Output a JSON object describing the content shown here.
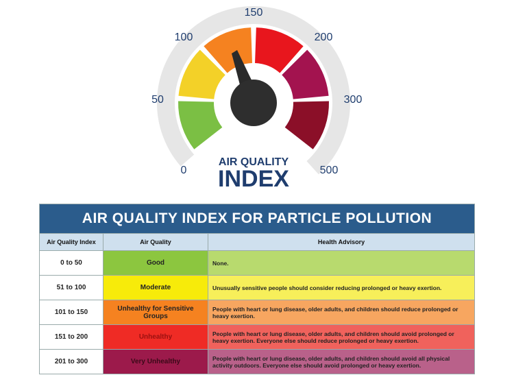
{
  "gauge": {
    "ticks": [
      "0",
      "50",
      "100",
      "150",
      "200",
      "300",
      "500"
    ],
    "caption_top": "AIR QUALITY",
    "caption_main": "INDEX"
  },
  "table": {
    "title": "AIR QUALITY INDEX FOR PARTICLE POLLUTION",
    "headers": [
      "Air Quality Index",
      "Air Quality",
      "Health Advisory"
    ],
    "rows": [
      [
        "0 to 50",
        "Good",
        "None."
      ],
      [
        "51 to 100",
        "Moderate",
        "Unusually sensitive people should consider reducing prolonged or heavy exertion."
      ],
      [
        "101 to 150",
        "Unhealthy for Sensitive Groups",
        "People with heart or lung disease, older adults, and children should reduce prolonged or heavy exertion."
      ],
      [
        "151 to 200",
        "Unhealthy",
        "People with heart or lung disease, older adults, and children should avoid prolonged or heavy exertion. Everyone else should reduce prolonged or heavy exertion."
      ],
      [
        "201 to 300",
        "Very Unhealthy",
        "People with heart or lung disease, older adults, and children should avoid all physical activity outdoors. Everyone else should avoid prolonged or heavy exertion."
      ]
    ]
  }
}
